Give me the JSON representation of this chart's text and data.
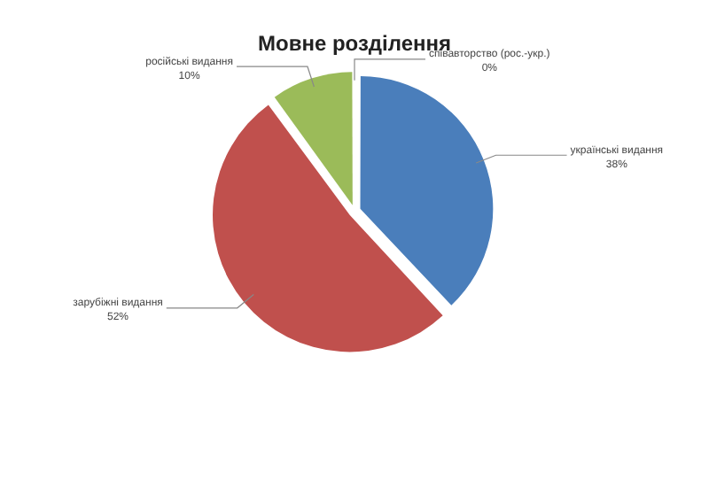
{
  "chart_data": {
    "type": "pie",
    "title": "Мовне розділення",
    "categories": [
      "українські видання",
      "зарубіжні видання",
      "російські видання",
      "співавторство (рос.-укр.)"
    ],
    "values": [
      38,
      52,
      10,
      0
    ],
    "colors": [
      "#4a7ebb",
      "#c0504d",
      "#9bbb59",
      "#8064a2"
    ],
    "value_labels": [
      "38%",
      "52%",
      "10%",
      "0%"
    ],
    "legend": false
  }
}
